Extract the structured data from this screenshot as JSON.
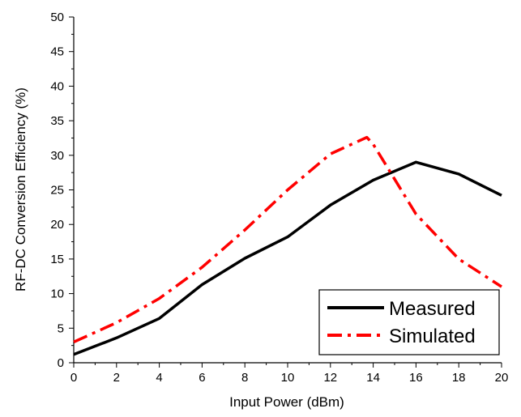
{
  "chart_data": {
    "type": "line",
    "xlabel": "Input Power (dBm)",
    "ylabel": "RF-DC Conversion Efficiency (%)",
    "xlim": [
      0,
      20
    ],
    "ylim": [
      0,
      50
    ],
    "x_ticks": [
      "0",
      "2",
      "4",
      "6",
      "8",
      "10",
      "12",
      "14",
      "16",
      "18",
      "20"
    ],
    "y_ticks": [
      "0",
      "5",
      "10",
      "15",
      "20",
      "25",
      "30",
      "35",
      "40",
      "45",
      "50"
    ],
    "grid": false,
    "legend_position": "bottom-right",
    "series": [
      {
        "name": "Measured",
        "color": "#000000",
        "style": "solid",
        "x": [
          0,
          2,
          4,
          6,
          8,
          10,
          12,
          14,
          16,
          18,
          20
        ],
        "y": [
          1.2,
          3.6,
          6.4,
          11.3,
          15.1,
          18.2,
          22.8,
          26.4,
          29.0,
          27.3,
          24.2
        ]
      },
      {
        "name": "Simulated",
        "color": "#ff0000",
        "style": "dash-dot",
        "x": [
          0,
          2,
          4,
          6,
          8,
          10,
          12,
          13.7,
          14,
          16,
          18,
          20
        ],
        "y": [
          3.0,
          5.8,
          9.3,
          13.8,
          19.2,
          25.0,
          30.2,
          32.6,
          31.6,
          21.5,
          15.0,
          11.0
        ]
      }
    ]
  }
}
